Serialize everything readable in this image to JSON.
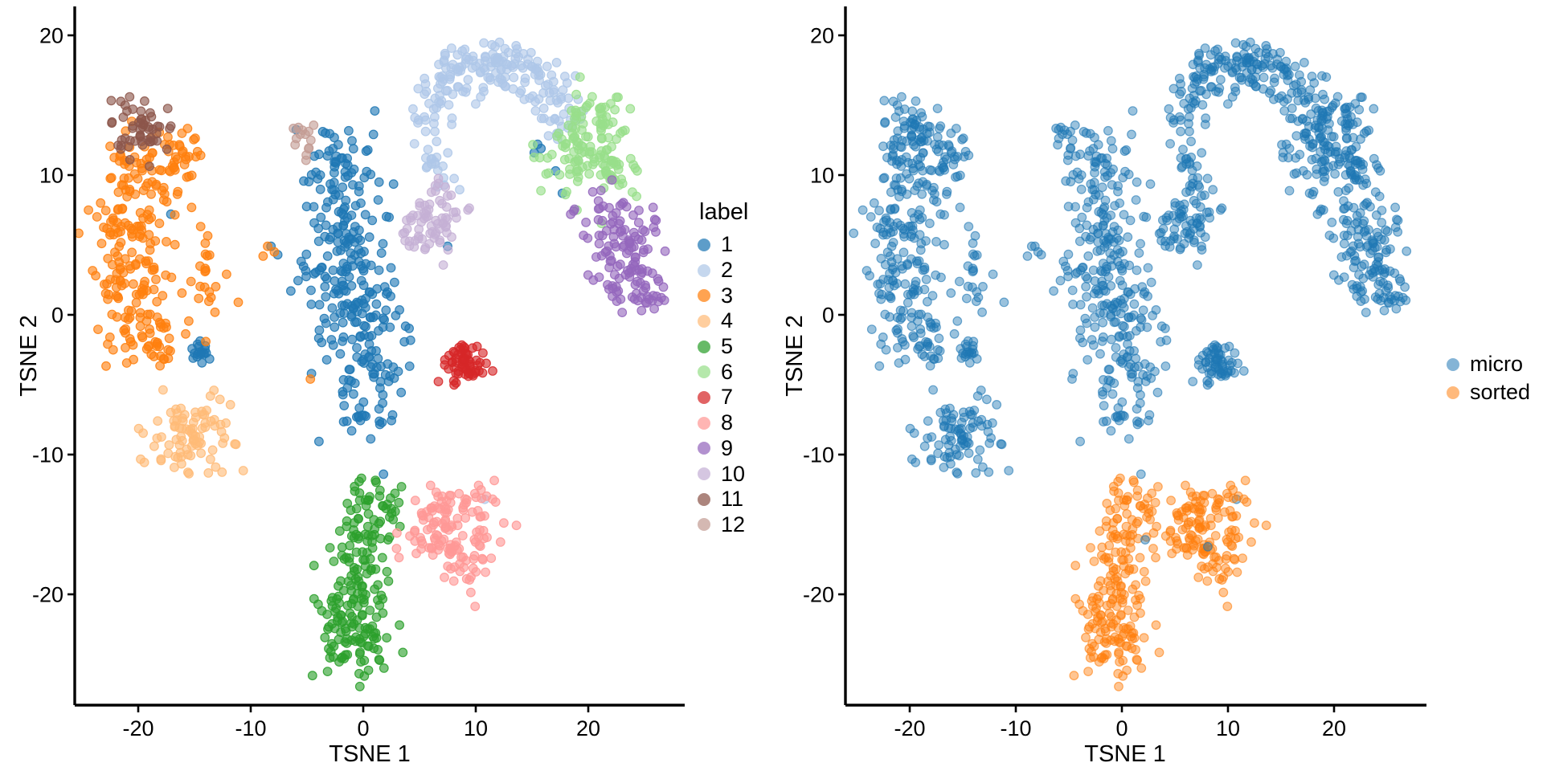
{
  "figure": {
    "background": "#ffffff"
  },
  "chart_data": [
    {
      "type": "scatter",
      "id": "tsne-by-label",
      "xlabel": "TSNE 1",
      "ylabel": "TSNE 2",
      "x_ticks": [
        -20,
        -10,
        0,
        10,
        20
      ],
      "y_ticks": [
        20,
        10,
        0,
        -10,
        -20
      ],
      "xlim": [
        -25.6,
        28.6
      ],
      "ylim": [
        -27.9,
        22.1
      ],
      "grid": false,
      "legend": {
        "title": "label",
        "position": "right",
        "items": [
          {
            "label": "1",
            "color": "#1F77B4"
          },
          {
            "label": "2",
            "color": "#AEC7E8"
          },
          {
            "label": "3",
            "color": "#FF7F0E"
          },
          {
            "label": "4",
            "color": "#FFBB78"
          },
          {
            "label": "5",
            "color": "#2CA02C"
          },
          {
            "label": "6",
            "color": "#98DF8A"
          },
          {
            "label": "7",
            "color": "#D62728"
          },
          {
            "label": "8",
            "color": "#FF9896"
          },
          {
            "label": "9",
            "color": "#9467BD"
          },
          {
            "label": "10",
            "color": "#C5B0D5"
          },
          {
            "label": "11",
            "color": "#8C564B"
          },
          {
            "label": "12",
            "color": "#C49C94"
          }
        ]
      },
      "clusters": [
        {
          "label": "1",
          "batch": "micro",
          "blobs": [
            [
              -2.2,
              11.2,
              1.5,
              1.3,
              40
            ],
            [
              -1.5,
              7.6,
              2.0,
              1.6,
              55
            ],
            [
              -1.8,
              3.6,
              2.2,
              1.8,
              70
            ],
            [
              -0.5,
              0.2,
              2.0,
              1.7,
              60
            ],
            [
              0.3,
              -3.2,
              1.9,
              1.6,
              50
            ],
            [
              0.2,
              -6.9,
              1.3,
              1.4,
              25
            ],
            [
              -14.6,
              -2.6,
              0.55,
              0.5,
              18
            ]
          ],
          "outliers": [
            [
              -17.1,
              7.2
            ],
            [
              -8.2,
              4.9
            ],
            [
              -7.6,
              4.3
            ],
            [
              -4.6,
              -4.2
            ],
            [
              15.5,
              12.2
            ],
            [
              15.2,
              11.6
            ],
            [
              15.8,
              11.9
            ],
            [
              17.1,
              10.3
            ],
            [
              17.7,
              8.7
            ],
            [
              7.5,
              4.9
            ],
            [
              1.8,
              -11.4
            ]
          ]
        },
        {
          "label": "2",
          "batch": "micro",
          "arc": {
            "cx": 11.5,
            "cy": 11.3,
            "r": 6.9,
            "r_sd": 0.95,
            "a0": 160,
            "a1": 12,
            "n": 165
          },
          "blobs": [
            [
              12,
              17.3,
              1.6,
              1.0,
              28
            ],
            [
              5.8,
              12.0,
              0.8,
              1.1,
              10
            ],
            [
              6.8,
              11.2,
              0.9,
              1.3,
              14
            ]
          ],
          "outliers": [
            [
              10.8,
              -13.2
            ]
          ]
        },
        {
          "label": "3",
          "batch": "micro",
          "blobs": [
            [
              -19.5,
              11,
              1.6,
              1.3,
              48
            ],
            [
              -21,
              6.5,
              1.7,
              1.7,
              58
            ],
            [
              -20.3,
              2.5,
              2.0,
              1.7,
              62
            ],
            [
              -19,
              -0.9,
              1.8,
              1.3,
              42
            ],
            [
              -16.3,
              10.8,
              1.2,
              1.4,
              30
            ],
            [
              -13.9,
              2.8,
              1.2,
              2.0,
              24
            ],
            [
              -18.6,
              -2.9,
              1.5,
              0.8,
              14
            ]
          ],
          "outliers": [
            [
              -8.5,
              4.9
            ],
            [
              -8.9,
              4.2
            ],
            [
              -7.9,
              4.5
            ],
            [
              -4.7,
              -4.6
            ]
          ]
        },
        {
          "label": "4",
          "batch": "micro",
          "blobs": [
            [
              -15.2,
              -8.6,
              1.9,
              1.5,
              88
            ]
          ]
        },
        {
          "label": "5",
          "batch": "sorted",
          "blobs": [
            [
              0.8,
              -14,
              1.5,
              1.1,
              40
            ],
            [
              -0.3,
              -17.5,
              1.8,
              1.5,
              55
            ],
            [
              -1.2,
              -21,
              1.7,
              1.5,
              65
            ],
            [
              -0.8,
              -24,
              1.4,
              1.1,
              45
            ]
          ],
          "outliers": [
            [
              3.4,
              -12.3
            ]
          ]
        },
        {
          "label": "6",
          "batch": "micro",
          "blobs": [
            [
              20.5,
              13.5,
              1.7,
              1.4,
              70
            ],
            [
              18.8,
              10.9,
              1.6,
              1.2,
              45
            ],
            [
              22.3,
              9.9,
              1.3,
              1.2,
              30
            ]
          ]
        },
        {
          "label": "7",
          "batch": "micro",
          "blobs": [
            [
              9.1,
              -3.4,
              1.05,
              0.8,
              62
            ]
          ]
        },
        {
          "label": "8",
          "batch": "sorted",
          "blobs": [
            [
              8.4,
              -13.8,
              1.9,
              1.1,
              55
            ],
            [
              6.8,
              -16.4,
              1.9,
              1.4,
              60
            ],
            [
              9.6,
              -17.4,
              1.2,
              1.0,
              25
            ]
          ]
        },
        {
          "label": "9",
          "batch": "micro",
          "blobs": [
            [
              23.4,
              3.8,
              1.4,
              1.6,
              75
            ],
            [
              22,
              6.4,
              1.5,
              1.3,
              40
            ],
            [
              24.6,
              1.4,
              1.2,
              0.9,
              20
            ]
          ],
          "outliers": [
            [
              20.4,
              8.8
            ],
            [
              20.9,
              6.8
            ]
          ]
        },
        {
          "label": "10",
          "batch": "micro",
          "blobs": [
            [
              6.4,
              6.9,
              1.3,
              1.2,
              58
            ],
            [
              4.3,
              5.6,
              0.7,
              0.9,
              12
            ]
          ]
        },
        {
          "label": "11",
          "batch": "micro",
          "blobs": [
            [
              -20,
              13.3,
              1.25,
              1.05,
              55
            ]
          ]
        },
        {
          "label": "12",
          "batch": "micro",
          "blobs": [
            [
              -5.2,
              12.2,
              0.75,
              0.7,
              14
            ]
          ]
        }
      ],
      "extra_points": [
        {
          "x": 2.2,
          "y": -16.1,
          "label": "5",
          "batch": "micro"
        },
        {
          "x": 8.1,
          "y": -16.6,
          "label": "8",
          "batch": "micro"
        },
        {
          "x": -0.3,
          "y": -26.6,
          "label": "5",
          "batch": "sorted"
        }
      ]
    },
    {
      "type": "scatter",
      "id": "tsne-by-batch",
      "uses_points_of": "tsne-by-label",
      "xlabel": "TSNE 1",
      "ylabel": "TSNE 2",
      "x_ticks": [
        -20,
        -10,
        0,
        10,
        20
      ],
      "y_ticks": [
        20,
        10,
        0,
        -10,
        -20
      ],
      "xlim": [
        -26,
        28.7
      ],
      "ylim": [
        -27.9,
        22.1
      ],
      "grid": false,
      "legend": {
        "title": "",
        "position": "right",
        "items": [
          {
            "label": "micro",
            "color": "#1F77B4"
          },
          {
            "label": "sorted",
            "color": "#FF7F0E"
          }
        ]
      }
    }
  ]
}
